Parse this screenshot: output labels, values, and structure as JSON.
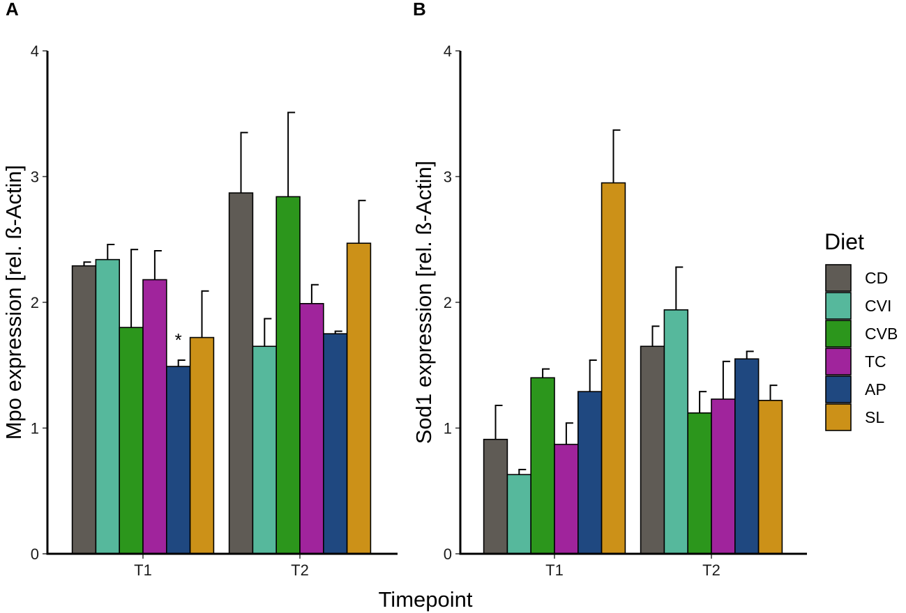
{
  "figure": {
    "xlabel": "Timepoint",
    "legend_title": "Diet"
  },
  "chart_data": [
    {
      "type": "bar",
      "panel_label": "A",
      "ylabel": "Mpo expression [rel. ß-Actin]",
      "xlabel": "Timepoint",
      "categories": [
        "T1",
        "T2"
      ],
      "ylim": [
        0,
        4
      ],
      "yticks": [
        0,
        1,
        2,
        3,
        4
      ],
      "series": [
        {
          "name": "CD",
          "values": [
            2.29,
            2.87
          ],
          "errors": [
            0.03,
            0.48
          ]
        },
        {
          "name": "CVI",
          "values": [
            2.34,
            1.65
          ],
          "errors": [
            0.12,
            0.22
          ]
        },
        {
          "name": "CVB",
          "values": [
            1.8,
            2.84
          ],
          "errors": [
            0.62,
            0.67
          ]
        },
        {
          "name": "TC",
          "values": [
            2.18,
            1.99
          ],
          "errors": [
            0.23,
            0.15
          ]
        },
        {
          "name": "AP",
          "values": [
            1.49,
            1.75
          ],
          "errors": [
            0.05,
            0.02
          ]
        },
        {
          "name": "SL",
          "values": [
            1.72,
            2.47
          ],
          "errors": [
            0.37,
            0.34
          ]
        }
      ],
      "annotations": [
        {
          "category": "T1",
          "series": "AP",
          "text": "*"
        }
      ]
    },
    {
      "type": "bar",
      "panel_label": "B",
      "ylabel": "Sod1 expression [rel. ß-Actin]",
      "xlabel": "Timepoint",
      "categories": [
        "T1",
        "T2"
      ],
      "ylim": [
        0,
        4
      ],
      "yticks": [
        0,
        1,
        2,
        3,
        4
      ],
      "series": [
        {
          "name": "CD",
          "values": [
            0.91,
            1.65
          ],
          "errors": [
            0.27,
            0.16
          ]
        },
        {
          "name": "CVI",
          "values": [
            0.63,
            1.94
          ],
          "errors": [
            0.04,
            0.34
          ]
        },
        {
          "name": "CVB",
          "values": [
            1.4,
            1.12
          ],
          "errors": [
            0.07,
            0.17
          ]
        },
        {
          "name": "TC",
          "values": [
            0.87,
            1.23
          ],
          "errors": [
            0.17,
            0.3
          ]
        },
        {
          "name": "AP",
          "values": [
            1.29,
            1.55
          ],
          "errors": [
            0.25,
            0.06
          ]
        },
        {
          "name": "SL",
          "values": [
            2.95,
            1.22
          ],
          "errors": [
            0.42,
            0.12
          ]
        }
      ],
      "annotations": []
    }
  ],
  "legend": {
    "title": "Diet",
    "items": [
      {
        "name": "CD",
        "color": "#5f5b55"
      },
      {
        "name": "CVI",
        "color": "#56b89c"
      },
      {
        "name": "CVB",
        "color": "#2c961c"
      },
      {
        "name": "TC",
        "color": "#a0249c"
      },
      {
        "name": "AP",
        "color": "#1f4880"
      },
      {
        "name": "SL",
        "color": "#cc9118"
      }
    ]
  }
}
